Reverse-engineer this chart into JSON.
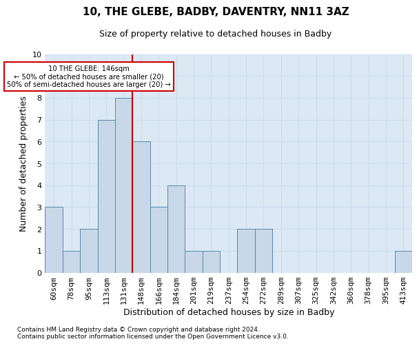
{
  "title1": "10, THE GLEBE, BADBY, DAVENTRY, NN11 3AZ",
  "title2": "Size of property relative to detached houses in Badby",
  "xlabel": "Distribution of detached houses by size in Badby",
  "ylabel": "Number of detached properties",
  "categories": [
    "60sqm",
    "78sqm",
    "95sqm",
    "113sqm",
    "131sqm",
    "148sqm",
    "166sqm",
    "184sqm",
    "201sqm",
    "219sqm",
    "237sqm",
    "254sqm",
    "272sqm",
    "289sqm",
    "307sqm",
    "325sqm",
    "342sqm",
    "360sqm",
    "378sqm",
    "395sqm",
    "413sqm"
  ],
  "values": [
    3,
    1,
    2,
    7,
    8,
    6,
    3,
    4,
    1,
    1,
    0,
    2,
    2,
    0,
    0,
    0,
    0,
    0,
    0,
    0,
    1
  ],
  "bar_color": "#c8d8e8",
  "bar_edge_color": "#5588aa",
  "annotation_box_text": "10 THE GLEBE: 146sqm\n← 50% of detached houses are smaller (20)\n50% of semi-detached houses are larger (20) →",
  "annotation_box_color": "#ffffff",
  "annotation_box_edge_color": "#cc0000",
  "vline_color": "#cc0000",
  "ylim": [
    0,
    10
  ],
  "yticks": [
    0,
    1,
    2,
    3,
    4,
    5,
    6,
    7,
    8,
    9,
    10
  ],
  "footnote1": "Contains HM Land Registry data © Crown copyright and database right 2024.",
  "footnote2": "Contains public sector information licensed under the Open Government Licence v3.0.",
  "grid_color": "#ccddee",
  "background_color": "#dce9f5",
  "title1_fontsize": 11,
  "title2_fontsize": 9,
  "ylabel_fontsize": 9,
  "xlabel_fontsize": 9,
  "tick_fontsize": 8,
  "footnote_fontsize": 6.5,
  "vline_x": 4.5
}
